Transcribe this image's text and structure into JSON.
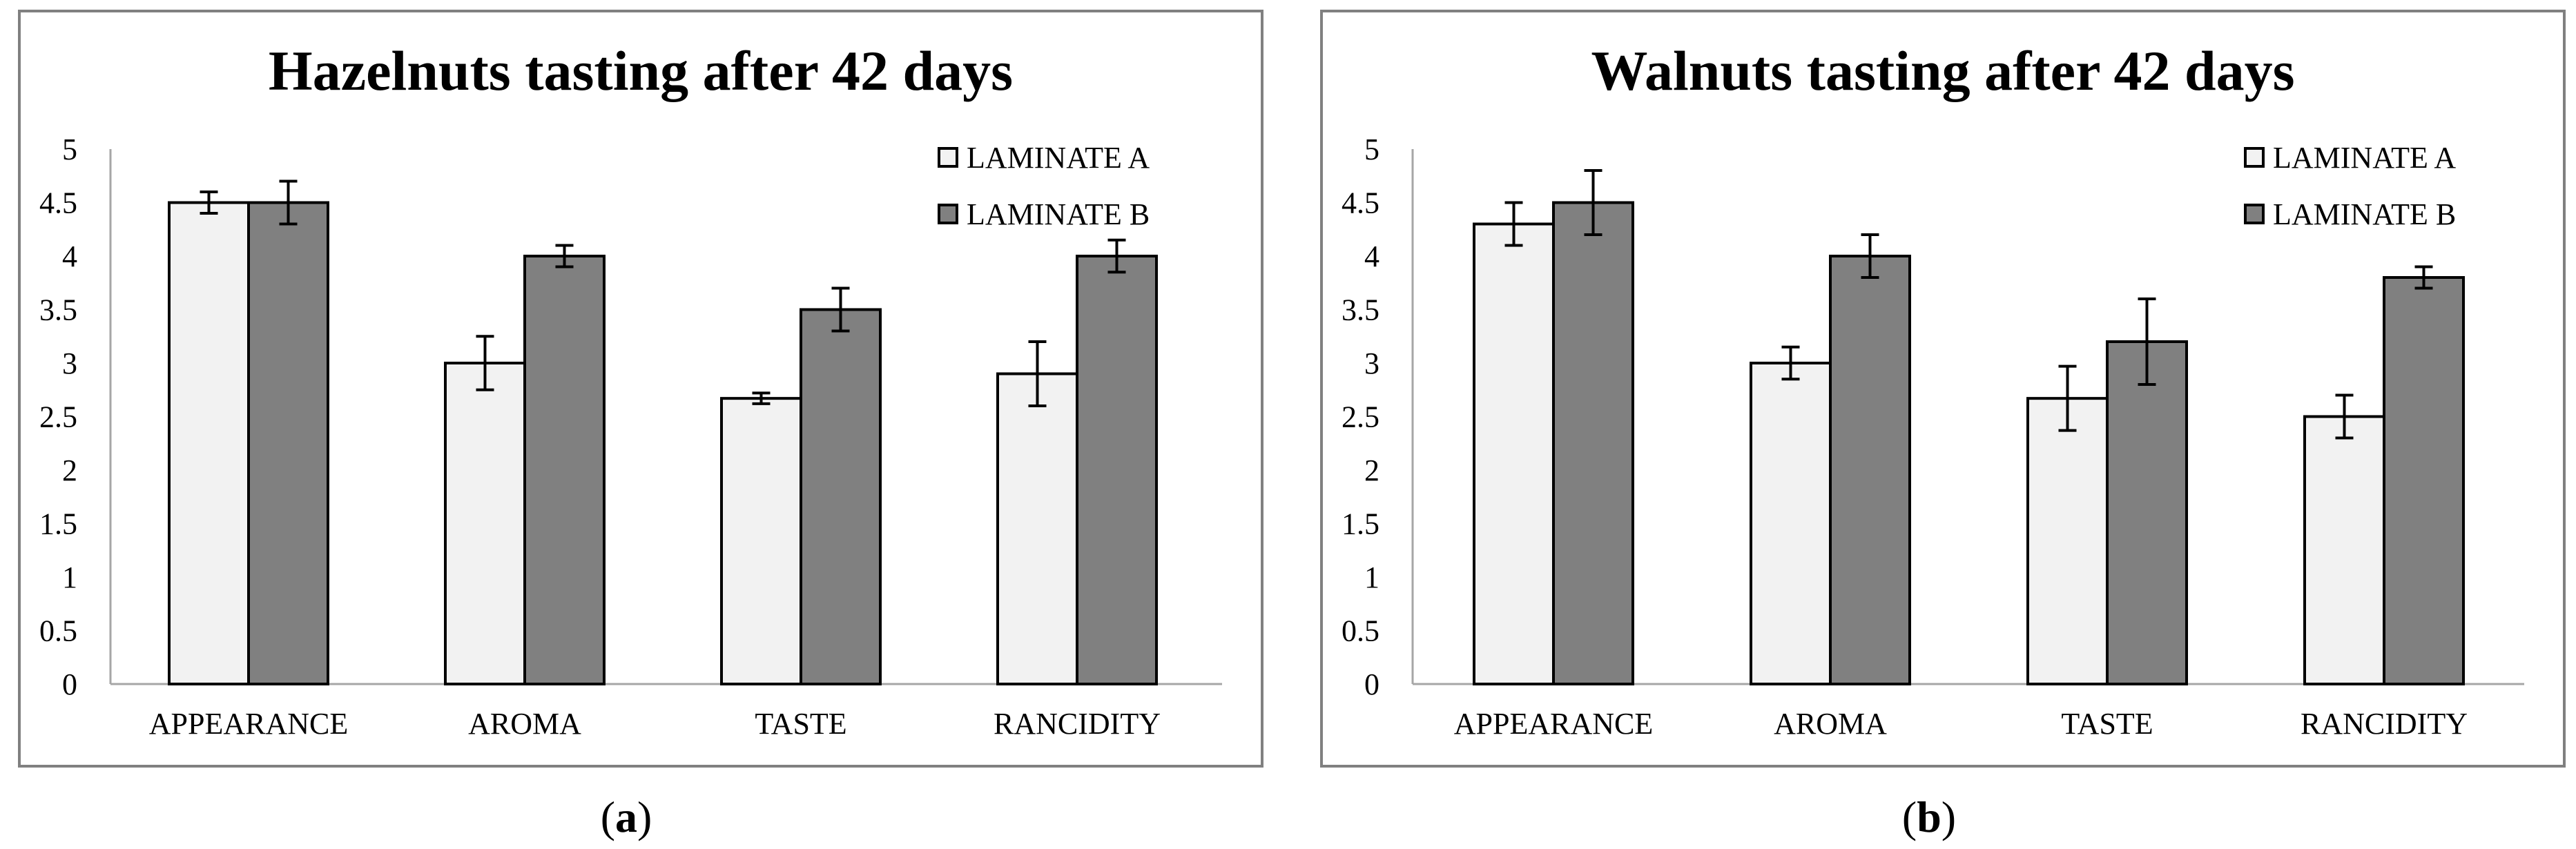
{
  "figure": {
    "captions": [
      {
        "open": "(",
        "letter": "a",
        "close": ")"
      },
      {
        "open": "(",
        "letter": "b",
        "close": ")"
      }
    ]
  },
  "chart_data": [
    {
      "type": "bar",
      "title": "Hazelnuts tasting after 42 days",
      "xlabel": "",
      "ylabel": "",
      "ylim": [
        0,
        5
      ],
      "yticks": [
        "0",
        "0.5",
        "1",
        "1.5",
        "2",
        "2.5",
        "3",
        "3.5",
        "4",
        "4.5",
        "5"
      ],
      "categories": [
        "APPEARANCE",
        "AROMA",
        "TASTE",
        "RANCIDITY"
      ],
      "legend_position": "top-right",
      "series": [
        {
          "name": "LAMINATE A",
          "color": "#f2f2f2",
          "values": [
            4.5,
            3.0,
            2.67,
            2.9
          ],
          "errors": [
            0.1,
            0.25,
            0.05,
            0.3
          ]
        },
        {
          "name": "LAMINATE B",
          "color": "#808080",
          "values": [
            4.5,
            4.0,
            3.5,
            4.0
          ],
          "errors": [
            0.2,
            0.1,
            0.2,
            0.15
          ]
        }
      ]
    },
    {
      "type": "bar",
      "title": "Walnuts tasting after 42 days",
      "xlabel": "",
      "ylabel": "",
      "ylim": [
        0,
        5
      ],
      "yticks": [
        "0",
        "0.5",
        "1",
        "1.5",
        "2",
        "2.5",
        "3",
        "3.5",
        "4",
        "4.5",
        "5"
      ],
      "categories": [
        "APPEARANCE",
        "AROMA",
        "TASTE",
        "RANCIDITY"
      ],
      "legend_position": "top-right",
      "series": [
        {
          "name": "LAMINATE A",
          "color": "#f2f2f2",
          "values": [
            4.3,
            3.0,
            2.67,
            2.5
          ],
          "errors": [
            0.2,
            0.15,
            0.3,
            0.2
          ]
        },
        {
          "name": "LAMINATE B",
          "color": "#808080",
          "values": [
            4.5,
            4.0,
            3.2,
            3.8
          ],
          "errors": [
            0.3,
            0.2,
            0.4,
            0.1
          ]
        }
      ]
    }
  ]
}
